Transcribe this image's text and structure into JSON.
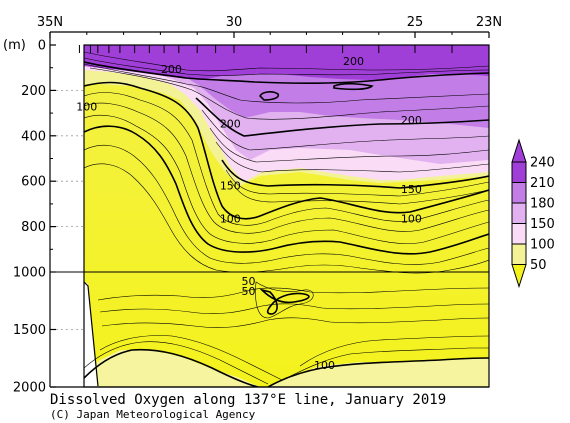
{
  "chart_data": {
    "type": "contour",
    "title": "Dissolved Oxygen along 137°E line, January 2019",
    "credit": "(C) Japan Meteorological Agency",
    "y_unit": "(m)",
    "x_ticks": [
      "35N",
      "30",
      "25",
      "23N"
    ],
    "x_tick_values": [
      35,
      30,
      25,
      23
    ],
    "xlim": [
      35,
      23
    ],
    "y_ticks_upper": [
      "0",
      "200",
      "400",
      "600",
      "800",
      "1000"
    ],
    "y_tick_values_upper": [
      0,
      200,
      400,
      600,
      800,
      1000
    ],
    "y_ticks_lower": [
      "1500",
      "2000"
    ],
    "y_tick_values_lower": [
      1500,
      2000
    ],
    "ylim": [
      0,
      2000
    ],
    "axis_break_depth": 1000,
    "colorbar": {
      "labels": [
        "240",
        "210",
        "180",
        "150",
        "100",
        "50"
      ],
      "levels": [
        240,
        210,
        180,
        150,
        100,
        50
      ],
      "colors": [
        "#a03ed8",
        "#c27ee6",
        "#e2b2f0",
        "#fadcf6",
        "#f4f296",
        "#f4f21c"
      ]
    },
    "contour_labels": [
      {
        "text": "200",
        "lat": 26.7,
        "depth": 70
      },
      {
        "text": "200",
        "lat": 31.7,
        "depth": 105
      },
      {
        "text": "100",
        "lat": 34.0,
        "depth": 270
      },
      {
        "text": "200",
        "lat": 30.1,
        "depth": 345
      },
      {
        "text": "200",
        "lat": 25.1,
        "depth": 330
      },
      {
        "text": "150",
        "lat": 30.1,
        "depth": 620
      },
      {
        "text": "150",
        "lat": 25.1,
        "depth": 635
      },
      {
        "text": "100",
        "lat": 30.1,
        "depth": 765
      },
      {
        "text": "100",
        "lat": 25.1,
        "depth": 765
      },
      {
        "text": "50",
        "lat": 29.6,
        "depth": 1080
      },
      {
        "text": "50",
        "lat": 29.6,
        "depth": 1165
      },
      {
        "text": "100",
        "lat": 27.5,
        "depth": 1810
      }
    ]
  }
}
